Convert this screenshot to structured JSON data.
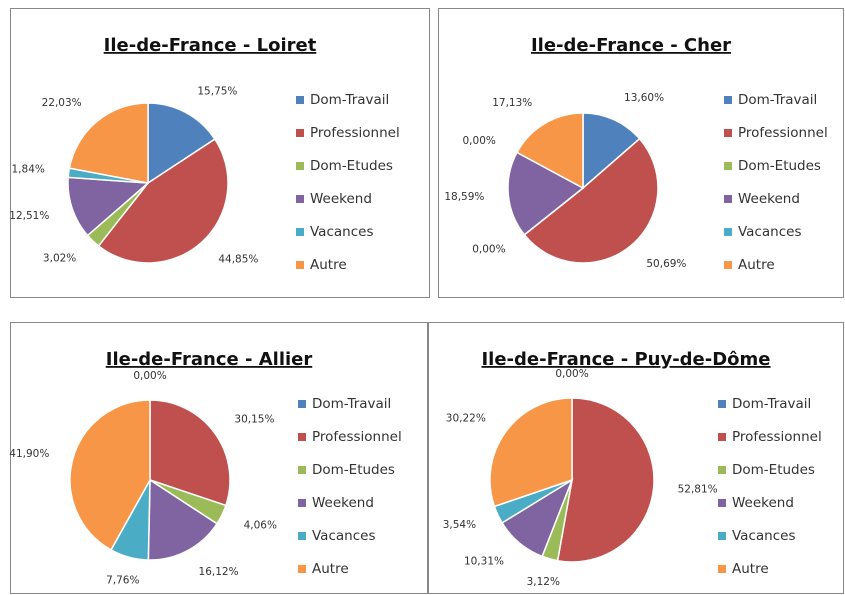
{
  "chart_data": [
    {
      "type": "pie",
      "title": "Ile-de-France - Loiret",
      "categories": [
        "Dom-Travail",
        "Professionnel",
        "Dom-Etudes",
        "Weekend",
        "Vacances",
        "Autre"
      ],
      "values": [
        15.75,
        44.85,
        3.02,
        12.51,
        1.84,
        22.03
      ],
      "value_labels": [
        "15,75%",
        "44,85%",
        "3,02%",
        "12,51%",
        "1,84%",
        "22,03%"
      ],
      "colors": [
        "#4f81bd",
        "#c0504d",
        "#9bbb59",
        "#8064a2",
        "#4bacc6",
        "#f79646"
      ]
    },
    {
      "type": "pie",
      "title": "Ile-de-France - Cher",
      "categories": [
        "Dom-Travail",
        "Professionnel",
        "Dom-Etudes",
        "Weekend",
        "Vacances",
        "Autre"
      ],
      "values": [
        13.6,
        50.69,
        0.0,
        18.59,
        0.0,
        17.13
      ],
      "value_labels": [
        "13,60%",
        "50,69%",
        "0,00%",
        "18,59%",
        "0,00%",
        "17,13%"
      ],
      "colors": [
        "#4f81bd",
        "#c0504d",
        "#9bbb59",
        "#8064a2",
        "#4bacc6",
        "#f79646"
      ]
    },
    {
      "type": "pie",
      "title": "Ile-de-France - Allier",
      "categories": [
        "Dom-Travail",
        "Professionnel",
        "Dom-Etudes",
        "Weekend",
        "Vacances",
        "Autre"
      ],
      "values": [
        0.0,
        30.15,
        4.06,
        16.12,
        7.76,
        41.9
      ],
      "value_labels": [
        "0,00%",
        "30,15%",
        "4,06%",
        "16,12%",
        "7,76%",
        "41,90%"
      ],
      "colors": [
        "#4f81bd",
        "#c0504d",
        "#9bbb59",
        "#8064a2",
        "#4bacc6",
        "#f79646"
      ]
    },
    {
      "type": "pie",
      "title": "Ile-de-France - Puy-de-Dôme",
      "categories": [
        "Dom-Travail",
        "Professionnel",
        "Dom-Etudes",
        "Weekend",
        "Vacances",
        "Autre"
      ],
      "values": [
        0.0,
        52.81,
        3.12,
        10.31,
        3.54,
        30.22
      ],
      "value_labels": [
        "0,00%",
        "52,81%",
        "3,12%",
        "10,31%",
        "3,54%",
        "30,22%"
      ],
      "colors": [
        "#4f81bd",
        "#c0504d",
        "#9bbb59",
        "#8064a2",
        "#4bacc6",
        "#f79646"
      ]
    }
  ]
}
